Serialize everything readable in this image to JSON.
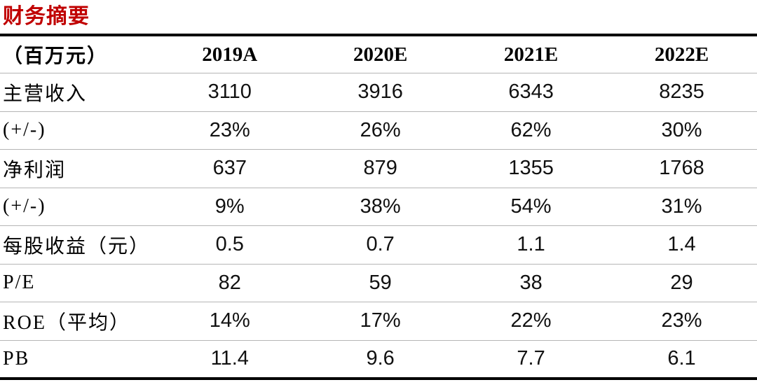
{
  "title": "财务摘要",
  "colors": {
    "title": "#c00000",
    "thick_rule": "#000000",
    "thin_rule": "#b5b5b5"
  },
  "table": {
    "unit_header": "（百万元）",
    "columns": [
      "2019A",
      "2020E",
      "2021E",
      "2022E"
    ],
    "rows": [
      {
        "label": "主营收入",
        "values": [
          "3110",
          "3916",
          "6343",
          "8235"
        ]
      },
      {
        "label": "(+/-)",
        "values": [
          "23%",
          "26%",
          "62%",
          "30%"
        ]
      },
      {
        "label": "净利润",
        "values": [
          "637",
          "879",
          "1355",
          "1768"
        ]
      },
      {
        "label": "(+/-)",
        "values": [
          "9%",
          "38%",
          "54%",
          "31%"
        ]
      },
      {
        "label": "每股收益（元）",
        "values": [
          "0.5",
          "0.7",
          "1.1",
          "1.4"
        ]
      },
      {
        "label": "P/E",
        "values": [
          "82",
          "59",
          "38",
          "29"
        ]
      },
      {
        "label": "ROE（平均）",
        "values": [
          "14%",
          "17%",
          "22%",
          "23%"
        ]
      },
      {
        "label": "PB",
        "values": [
          "11.4",
          "9.6",
          "7.7",
          "6.1"
        ]
      }
    ]
  }
}
